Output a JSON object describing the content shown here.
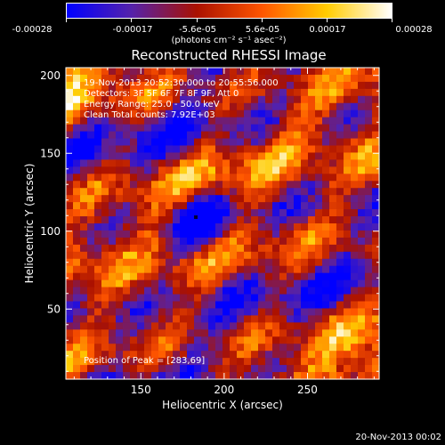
{
  "colorbar": {
    "tick_labels": [
      "-0.00028",
      "-0.00017",
      "-5.6e-05",
      "5.6e-05",
      "0.00017",
      "0.00028"
    ],
    "range": [
      -0.00028,
      0.00028
    ],
    "units": "(photons cm⁻² s⁻¹ asec⁻²)",
    "colors": [
      "#0000ff",
      "#5522aa",
      "#aa1100",
      "#ff5500",
      "#ffcc00",
      "#ffffff"
    ]
  },
  "chart_data": {
    "type": "heatmap",
    "title": "Reconstructed RHESSI Image",
    "xlabel": "Heliocentric X (arcsec)",
    "ylabel": "Heliocentric Y (arcsec)",
    "xlim": [
      105,
      293
    ],
    "ylim": [
      5,
      205
    ],
    "xticks": [
      150,
      200,
      250
    ],
    "yticks": [
      50,
      100,
      150,
      200
    ],
    "annotations": [
      "19-Nov-2013 20:52:30.000 to 20:55:56.000",
      "Detectors: 3F 5F 6F 7F 8F 9F, Att 0",
      "Energy Range: 25.0 - 50.0 keV",
      "Clean     Total counts: 7.92E+03"
    ],
    "peak_label": "Position of Peak = [283,69]",
    "peak": [
      283,
      69
    ],
    "minimum_marker": [
      183,
      109
    ],
    "pattern_note": "diagonal fringe pattern"
  },
  "footer": {
    "timestamp": "20-Nov-2013 00:02"
  }
}
